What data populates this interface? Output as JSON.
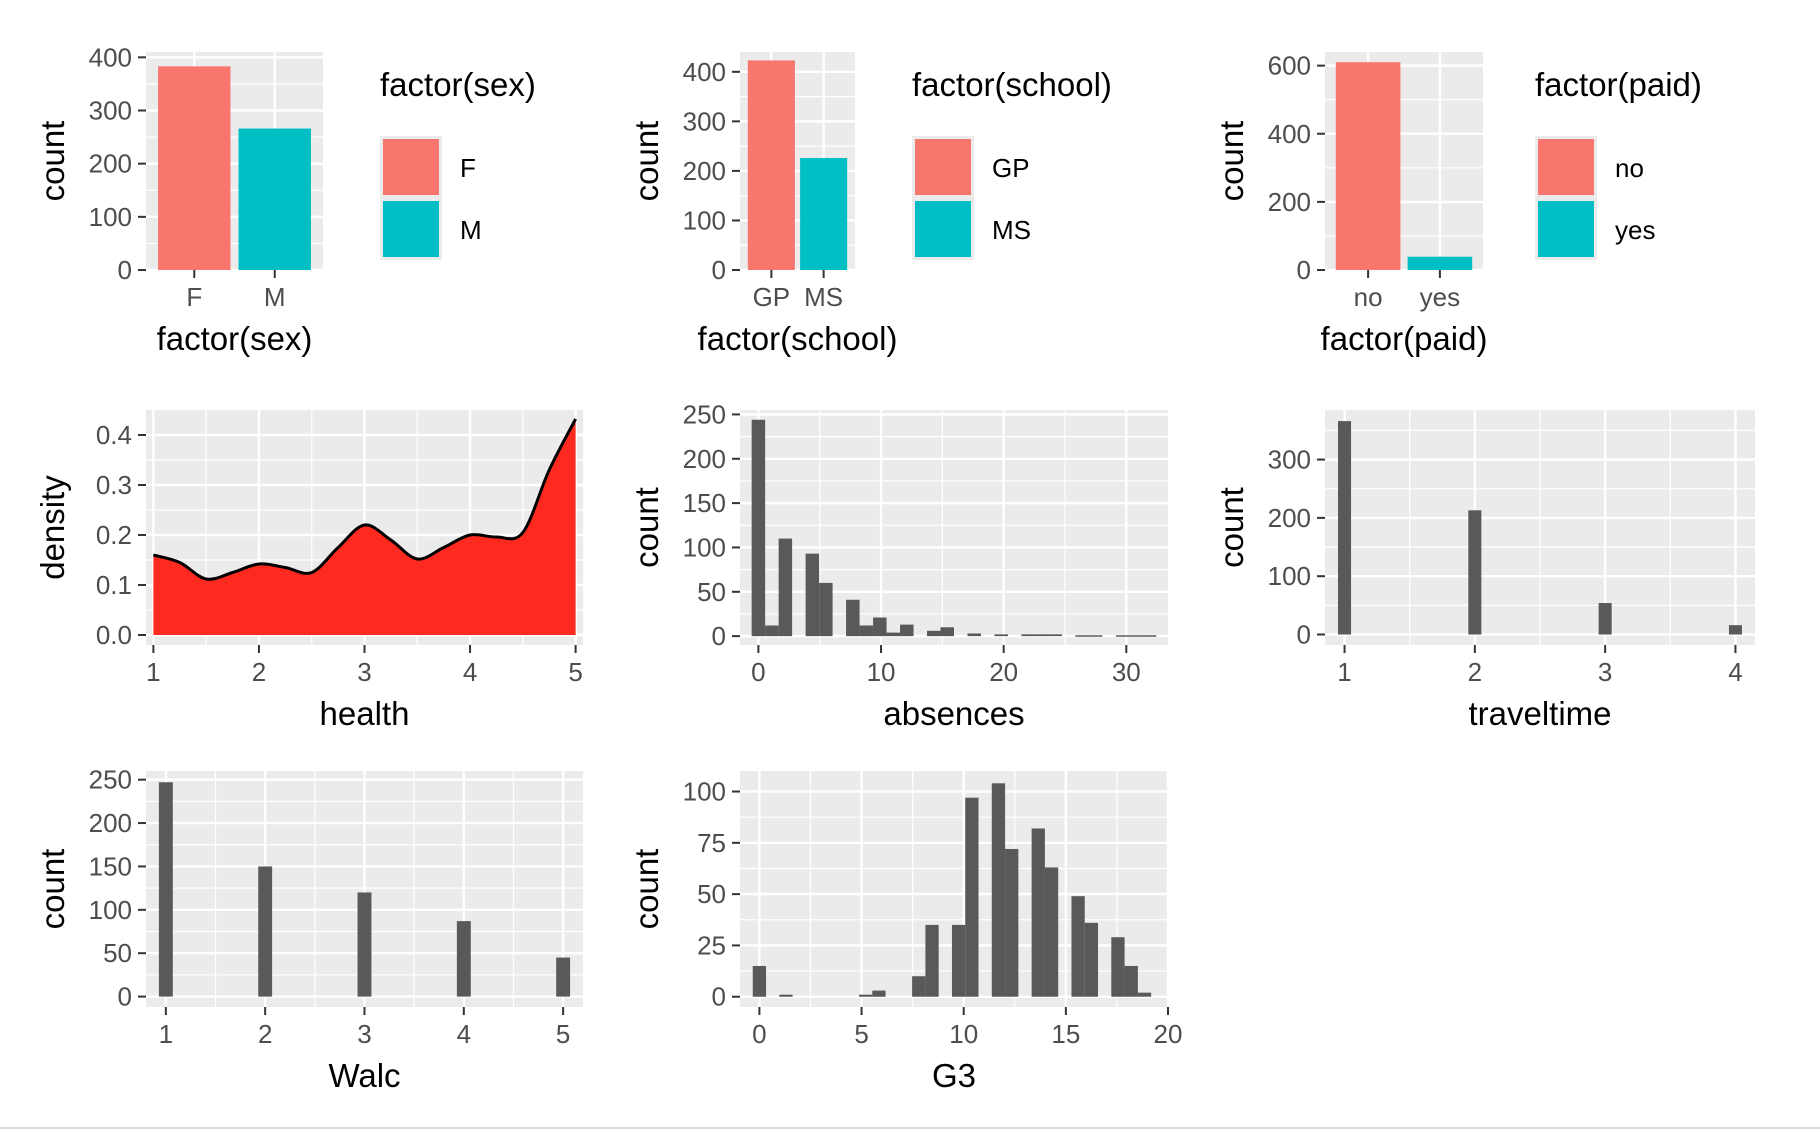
{
  "chart_data": [
    {
      "type": "bar",
      "xlabel": "factor(sex)",
      "ylabel": "count",
      "categories": [
        "F",
        "M"
      ],
      "values": [
        383,
        266
      ],
      "ylim": [
        0,
        410
      ],
      "yticks": [
        0,
        100,
        200,
        300,
        400
      ],
      "colors": [
        "#F8766D",
        "#00BFC4"
      ],
      "legend": {
        "title": "factor(sex)",
        "entries": [
          "F",
          "M"
        ],
        "position": "right"
      }
    },
    {
      "type": "bar",
      "xlabel": "factor(school)",
      "ylabel": "count",
      "categories": [
        "GP",
        "MS"
      ],
      "values": [
        423,
        226
      ],
      "ylim": [
        0,
        440
      ],
      "yticks": [
        0,
        100,
        200,
        300,
        400
      ],
      "colors": [
        "#F8766D",
        "#00BFC4"
      ],
      "legend": {
        "title": "factor(school)",
        "entries": [
          "GP",
          "MS"
        ],
        "position": "right"
      }
    },
    {
      "type": "bar",
      "xlabel": "factor(paid)",
      "ylabel": "count",
      "categories": [
        "no",
        "yes"
      ],
      "values": [
        610,
        39
      ],
      "ylim": [
        0,
        640
      ],
      "yticks": [
        0,
        200,
        400,
        600
      ],
      "colors": [
        "#F8766D",
        "#00BFC4"
      ],
      "legend": {
        "title": "factor(paid)",
        "entries": [
          "no",
          "yes"
        ],
        "position": "right"
      }
    },
    {
      "type": "area",
      "xlabel": "health",
      "ylabel": "density",
      "x": [
        1,
        1.25,
        1.5,
        1.75,
        2,
        2.25,
        2.5,
        2.75,
        3,
        3.25,
        3.5,
        3.75,
        4,
        4.25,
        4.5,
        4.75,
        5
      ],
      "y": [
        0.16,
        0.145,
        0.112,
        0.125,
        0.142,
        0.135,
        0.125,
        0.175,
        0.22,
        0.19,
        0.152,
        0.175,
        0.2,
        0.196,
        0.205,
        0.33,
        0.432
      ],
      "xlim": [
        0.93,
        5.07
      ],
      "ylim": [
        -0.02,
        0.45
      ],
      "xticks": [
        1,
        2,
        3,
        4,
        5
      ],
      "yticks": [
        0.0,
        0.1,
        0.2,
        0.3,
        0.4
      ],
      "fill": "#FF2A1F"
    },
    {
      "type": "bar",
      "subtype": "histogram",
      "xlabel": "absences",
      "ylabel": "count",
      "x": [
        0,
        1.1,
        2.2,
        3.3,
        4.4,
        5.5,
        6.6,
        7.7,
        8.8,
        9.9,
        11,
        12.1,
        13.2,
        14.3,
        15.4,
        16.5,
        17.6,
        18.7,
        19.8,
        20.9,
        22,
        23.1,
        24.2,
        25.3,
        26.4,
        27.5,
        28.6,
        29.7,
        30.8,
        31.9
      ],
      "values": [
        244,
        12,
        110,
        0,
        93,
        60,
        0,
        41,
        12,
        21,
        4,
        13,
        0,
        6,
        10,
        0,
        3,
        0,
        2,
        0,
        2,
        2,
        2,
        0,
        1,
        1,
        0,
        1,
        1,
        1
      ],
      "xlim": [
        -1.5,
        33.4
      ],
      "ylim": [
        -10,
        255
      ],
      "xticks": [
        0,
        10,
        20,
        30
      ],
      "yticks": [
        0,
        50,
        100,
        150,
        200,
        250
      ],
      "bin_width": 1.1,
      "color": "#595959"
    },
    {
      "type": "bar",
      "subtype": "histogram",
      "xlabel": "traveltime",
      "ylabel": "count",
      "x": [
        1,
        2,
        3,
        4
      ],
      "values": [
        366,
        213,
        54,
        16
      ],
      "xlim": [
        0.85,
        4.15
      ],
      "ylim": [
        -18,
        385
      ],
      "xticks": [
        1,
        2,
        3,
        4
      ],
      "yticks": [
        0,
        100,
        200,
        300
      ],
      "bin_width": 0.1,
      "color": "#595959"
    },
    {
      "type": "bar",
      "subtype": "histogram",
      "xlabel": "Walc",
      "ylabel": "count",
      "x": [
        1,
        2,
        3,
        4,
        5
      ],
      "values": [
        247,
        150,
        120,
        87,
        45
      ],
      "xlim": [
        0.8,
        5.2
      ],
      "ylim": [
        -12,
        260
      ],
      "xticks": [
        1,
        2,
        3,
        4,
        5
      ],
      "yticks": [
        0,
        50,
        100,
        150,
        200,
        250
      ],
      "bin_width": 0.14,
      "color": "#595959"
    },
    {
      "type": "bar",
      "subtype": "histogram",
      "xlabel": "G3",
      "ylabel": "count",
      "x": [
        0,
        0.65,
        1.3,
        1.95,
        2.6,
        3.25,
        3.9,
        4.55,
        5.2,
        5.85,
        6.5,
        7.15,
        7.8,
        8.45,
        9.1,
        9.75,
        10.4,
        11.05,
        11.7,
        12.35,
        13.0,
        13.65,
        14.3,
        14.95,
        15.6,
        16.25,
        16.9,
        17.55,
        18.2,
        18.85
      ],
      "values": [
        15,
        0,
        1,
        0,
        0,
        0,
        0,
        0,
        1,
        3,
        0,
        0,
        10,
        35,
        0,
        35,
        97,
        0,
        104,
        72,
        0,
        82,
        63,
        0,
        49,
        36,
        0,
        29,
        15,
        2
      ],
      "xlim": [
        -0.95,
        20.0
      ],
      "ylim": [
        -5,
        110
      ],
      "xticks": [
        0,
        5,
        10,
        15,
        20
      ],
      "yticks": [
        0,
        25,
        50,
        75,
        100
      ],
      "bin_width": 0.65,
      "color": "#595959"
    }
  ]
}
